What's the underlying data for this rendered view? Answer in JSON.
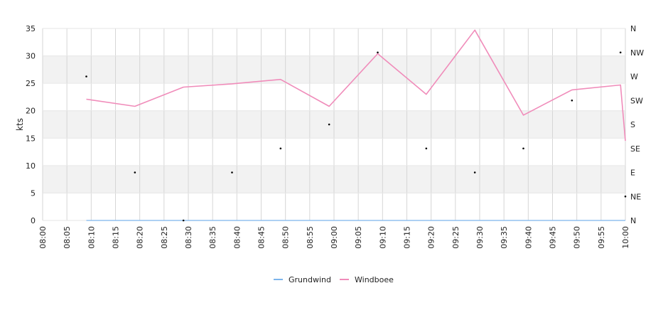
{
  "chart_data": {
    "type": "line",
    "ylabel": "kts",
    "ylim": [
      0,
      35
    ],
    "y_ticks": [
      0,
      5,
      10,
      15,
      20,
      25,
      30,
      35
    ],
    "x_ticks": [
      "08:00",
      "08:05",
      "08:10",
      "08:15",
      "08:20",
      "08:25",
      "08:30",
      "08:35",
      "08:40",
      "08:45",
      "08:50",
      "08:55",
      "09:00",
      "09:05",
      "09:10",
      "09:15",
      "09:20",
      "09:25",
      "09:30",
      "09:35",
      "09:40",
      "09:45",
      "09:50",
      "09:55",
      "10:00"
    ],
    "xlim": [
      "08:00",
      "10:00"
    ],
    "grid": true,
    "alternating_bands": true,
    "right_axis": {
      "labels": [
        "N",
        "NE",
        "E",
        "SE",
        "S",
        "SW",
        "W",
        "NW",
        "N"
      ]
    },
    "legend_position": "bottom-center",
    "series": [
      {
        "name": "Grundwind",
        "color": "#7cb5ec",
        "x": [
          "08:09",
          "08:19",
          "08:29",
          "08:39",
          "08:49",
          "08:59",
          "09:09",
          "09:19",
          "09:29",
          "09:39",
          "09:49",
          "09:59",
          "10:00"
        ],
        "values": [
          0,
          0,
          0,
          0,
          0,
          0,
          0,
          0,
          0,
          0,
          0,
          0,
          0
        ]
      },
      {
        "name": "Windboee",
        "color": "#f08cba",
        "x": [
          "08:09",
          "08:19",
          "08:29",
          "08:39",
          "08:49",
          "08:59",
          "09:09",
          "09:19",
          "09:29",
          "09:39",
          "09:49",
          "09:59",
          "10:00"
        ],
        "values": [
          22.1,
          20.8,
          24.3,
          24.9,
          25.7,
          20.8,
          30.4,
          23.0,
          34.7,
          19.2,
          23.8,
          24.7,
          14.5
        ]
      }
    ],
    "direction_points": {
      "unit": "compass",
      "x": [
        "08:09",
        "08:19",
        "08:29",
        "08:39",
        "08:49",
        "08:59",
        "09:09",
        "09:19",
        "09:29",
        "09:39",
        "09:49",
        "09:59",
        "10:00"
      ],
      "values": [
        "W",
        "E",
        "N",
        "E",
        "SE",
        "S",
        "NW",
        "SE",
        "E",
        "SE",
        "SW",
        "NW",
        "NE"
      ]
    }
  }
}
